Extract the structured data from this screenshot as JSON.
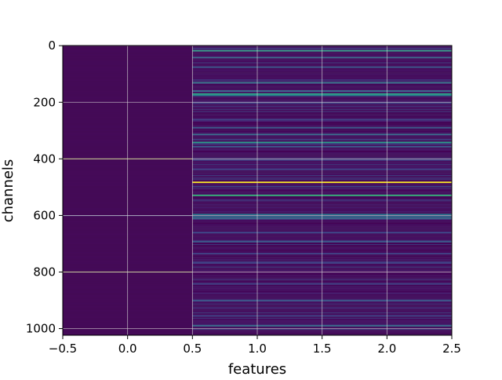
{
  "chart_data": {
    "type": "heatmap",
    "title": "",
    "xlabel": "features",
    "ylabel": "channels",
    "colormap": "viridis",
    "xlim": [
      -0.5,
      2.5
    ],
    "ylim": [
      1023.5,
      -0.5
    ],
    "x_ticks": [
      -0.5,
      0.0,
      0.5,
      1.0,
      1.5,
      2.0,
      2.5
    ],
    "x_tick_labels": [
      "−0.5",
      "0.0",
      "0.5",
      "1.0",
      "1.5",
      "2.0",
      "2.5"
    ],
    "y_ticks": [
      0,
      200,
      400,
      600,
      800,
      1000
    ],
    "y_tick_labels": [
      "0",
      "200",
      "400",
      "600",
      "800",
      "1000"
    ],
    "grid": true,
    "n_channels": 1024,
    "n_features": 3,
    "background_colors": {
      "feature_0": "#440a56",
      "features_1_2": "#46145f"
    },
    "feature_0_rows": [
      {
        "channel": 400,
        "color": "#a6a830"
      },
      {
        "channel": 800,
        "color": "#a6a830"
      },
      {
        "channel": 601,
        "color": "#5a4e8a"
      }
    ],
    "highlight_rows": [
      {
        "channel": 18,
        "color": "#39a88f"
      },
      {
        "channel": 42,
        "color": "#3f6b8e"
      },
      {
        "channel": 76,
        "color": "#3d5a8c"
      },
      {
        "channel": 131,
        "color": "#3b7a8e"
      },
      {
        "channel": 160,
        "color": "#3f6b8e"
      },
      {
        "channel": 171,
        "color": "#2bb08a"
      },
      {
        "channel": 176,
        "color": "#2a788e"
      },
      {
        "channel": 203,
        "color": "#414487"
      },
      {
        "channel": 262,
        "color": "#414487"
      },
      {
        "channel": 290,
        "color": "#3d5a8c"
      },
      {
        "channel": 314,
        "color": "#3b6d8e"
      },
      {
        "channel": 342,
        "color": "#2a9c8a"
      },
      {
        "channel": 357,
        "color": "#3d5a8c"
      },
      {
        "channel": 404,
        "color": "#414487"
      },
      {
        "channel": 437,
        "color": "#414487"
      },
      {
        "channel": 483,
        "color": "#fde725"
      },
      {
        "channel": 529,
        "color": "#35b779"
      },
      {
        "channel": 597,
        "color": "#2a788e"
      },
      {
        "channel": 604,
        "color": "#31688e"
      },
      {
        "channel": 610,
        "color": "#3b6d8e"
      },
      {
        "channel": 660,
        "color": "#414487"
      },
      {
        "channel": 693,
        "color": "#3d5a8c"
      },
      {
        "channel": 735,
        "color": "#414487"
      },
      {
        "channel": 768,
        "color": "#414487"
      },
      {
        "channel": 842,
        "color": "#414487"
      },
      {
        "channel": 901,
        "color": "#3d5a8c"
      },
      {
        "channel": 955,
        "color": "#414487"
      },
      {
        "channel": 990,
        "color": "#3b6d8e"
      }
    ]
  }
}
